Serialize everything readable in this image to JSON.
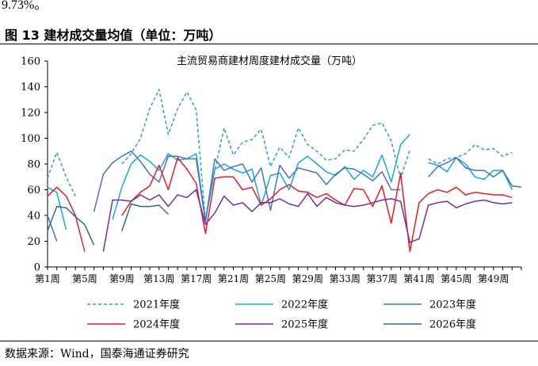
{
  "header": {
    "fragment": "9.73%。",
    "figure_label": "图 13",
    "figure_title": "建材成交量均值（单位：万吨）"
  },
  "source": "数据来源：Wind，国泰海通证券研究",
  "chart_data": {
    "type": "line",
    "title": "主流贸易商建材周度建材成交量（万吨）",
    "xlabel": "",
    "ylabel": "",
    "ylim": [
      0,
      160
    ],
    "yticks": [
      0,
      20,
      40,
      60,
      80,
      100,
      120,
      140,
      160
    ],
    "x_count": 52,
    "x_tick_labels": [
      {
        "week": 1,
        "label": "第1周"
      },
      {
        "week": 5,
        "label": "第5周"
      },
      {
        "week": 9,
        "label": "第9周"
      },
      {
        "week": 13,
        "label": "第13周"
      },
      {
        "week": 17,
        "label": "第17周"
      },
      {
        "week": 21,
        "label": "第21周"
      },
      {
        "week": 25,
        "label": "第25周"
      },
      {
        "week": 29,
        "label": "第29周"
      },
      {
        "week": 33,
        "label": "第33周"
      },
      {
        "week": 37,
        "label": "第37周"
      },
      {
        "week": 41,
        "label": "第41周"
      },
      {
        "week": 45,
        "label": "第45周"
      },
      {
        "week": 49,
        "label": "第49周"
      }
    ],
    "grid": false,
    "legend_position": "bottom",
    "series": [
      {
        "name": "2021年度",
        "color": "#2E9AD0",
        "dash": true,
        "values": [
          69,
          89,
          70,
          55,
          null,
          null,
          null,
          null,
          80,
          88,
          100,
          123,
          138,
          103,
          123,
          136,
          122,
          36,
          75,
          108,
          87,
          97,
          99,
          107,
          78,
          93,
          85,
          108,
          95,
          90,
          83,
          84,
          91,
          90,
          99,
          110,
          112,
          98,
          69,
          91,
          null,
          84,
          80,
          84,
          85,
          88,
          95,
          91,
          92,
          86,
          89,
          null
        ]
      },
      {
        "week_note": "",
        "name": "2022年度",
        "color": "#17A8E0",
        "dash": false,
        "values": [
          62,
          58,
          29,
          null,
          null,
          null,
          null,
          37,
          62,
          80,
          87,
          82,
          75,
          88,
          83,
          84,
          88,
          36,
          76,
          80,
          76,
          73,
          76,
          48,
          71,
          73,
          60,
          81,
          86,
          80,
          74,
          71,
          78,
          68,
          75,
          70,
          87,
          66,
          95,
          103,
          null,
          81,
          79,
          74,
          85,
          80,
          70,
          68,
          75,
          75,
          60,
          null
        ]
      },
      {
        "name": "2023年度",
        "color": "#4472C4",
        "dash": false,
        "values": [
          40,
          20,
          null,
          null,
          null,
          43,
          72,
          81,
          86,
          90,
          82,
          72,
          66,
          86,
          86,
          84,
          84,
          35,
          84,
          75,
          78,
          80,
          66,
          77,
          44,
          79,
          69,
          77,
          75,
          73,
          64,
          72,
          77,
          76,
          72,
          67,
          74,
          60,
          60,
          null,
          null,
          70,
          78,
          81,
          85,
          77,
          75,
          75,
          70,
          75,
          63,
          62
        ]
      },
      {
        "name": "2024年度",
        "color": "#E41E26",
        "dash": false,
        "values": [
          55,
          62,
          55,
          40,
          12,
          null,
          null,
          null,
          40,
          51,
          58,
          63,
          79,
          60,
          85,
          76,
          65,
          26,
          69,
          70,
          70,
          60,
          62,
          48,
          53,
          60,
          64,
          59,
          58,
          54,
          57,
          52,
          48,
          61,
          60,
          47,
          63,
          34,
          73,
          12,
          50,
          57,
          60,
          58,
          62,
          56,
          58,
          57,
          56,
          56,
          54,
          null
        ]
      },
      {
        "name": "2025年度",
        "color": "#7030A0",
        "dash": false,
        "values": [
          null,
          null,
          null,
          null,
          null,
          null,
          12,
          52,
          52,
          51,
          56,
          52,
          56,
          47,
          56,
          54,
          60,
          33,
          42,
          55,
          48,
          50,
          43,
          50,
          50,
          53,
          49,
          47,
          57,
          47,
          54,
          50,
          48,
          47,
          48,
          50,
          52,
          53,
          51,
          19,
          22,
          48,
          50,
          51,
          46,
          49,
          51,
          52,
          50,
          49,
          50,
          null
        ]
      },
      {
        "name": "2026年度",
        "color": "#2C6E8E",
        "dash": false,
        "values": [
          28,
          47,
          46,
          39,
          33,
          17,
          null,
          null,
          28,
          49,
          47,
          47,
          48,
          41,
          null,
          null,
          null,
          null,
          null,
          null,
          null,
          null,
          null,
          null,
          null,
          null,
          null,
          null,
          null,
          null,
          null,
          null,
          null,
          null,
          null,
          null,
          null,
          null,
          null,
          null,
          null,
          null,
          null,
          null,
          null,
          null,
          null,
          null,
          null,
          null,
          null,
          null
        ]
      }
    ]
  }
}
